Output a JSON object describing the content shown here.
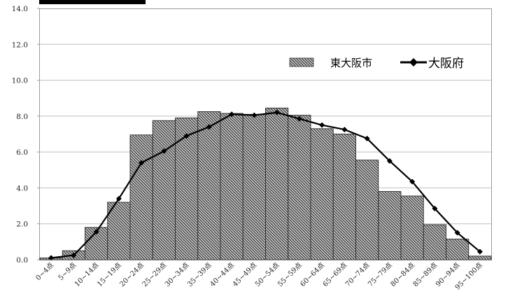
{
  "chart_data": {
    "type": "bar",
    "categories": [
      "0~4点",
      "5~9点",
      "10~14点",
      "15~19点",
      "20~24点",
      "25~29点",
      "30~34点",
      "35~39点",
      "40~44点",
      "45~49点",
      "50~54点",
      "55~59点",
      "60~64点",
      "65~69点",
      "70~74点",
      "75~79点",
      "80~84点",
      "85~89点",
      "90~94点",
      "95~100点"
    ],
    "series": [
      {
        "name": "東大阪市",
        "kind": "bar",
        "pattern": "diagonal-hatch",
        "values": [
          0.1,
          0.5,
          1.8,
          3.2,
          6.95,
          7.75,
          7.9,
          8.25,
          8.15,
          8.1,
          8.45,
          8.05,
          7.3,
          7.0,
          5.55,
          3.8,
          3.55,
          1.95,
          1.15,
          0.2
        ]
      },
      {
        "name": "大阪府",
        "kind": "line",
        "marker": "diamond",
        "values": [
          0.1,
          0.25,
          1.55,
          3.4,
          5.4,
          6.05,
          6.9,
          7.4,
          8.1,
          8.05,
          8.2,
          7.85,
          7.5,
          7.25,
          6.75,
          5.5,
          4.35,
          2.85,
          1.5,
          0.45
        ]
      }
    ],
    "y_ticks": [
      "0.0",
      "2.0",
      "4.0",
      "6.0",
      "8.0",
      "10.0",
      "12.0",
      "14.0"
    ],
    "ylim": [
      0,
      14
    ],
    "grid": true,
    "legend_position": "top-right",
    "colors": {
      "bar_fill": "#bdbdbd",
      "bar_hatch": "#333333",
      "line": "#000000",
      "grid": "#bfbfbf",
      "axis": "#9a9a9a"
    }
  }
}
